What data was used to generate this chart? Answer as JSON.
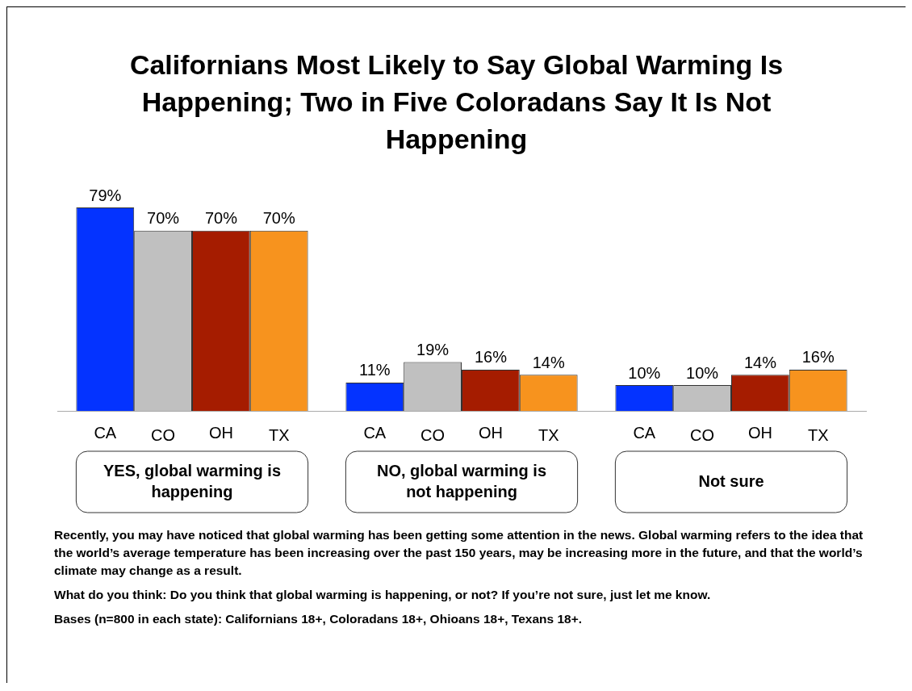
{
  "chart_data": {
    "type": "bar",
    "title": "Californians Most Likely to Say Global Warming Is Happening; Two in Five Coloradans Say It Is Not Happening",
    "categories": [
      "YES, global warming is happening",
      "NO, global warming is not happening",
      "Not sure"
    ],
    "series": [
      {
        "name": "CA",
        "color": "#0433ff",
        "values": [
          79,
          11,
          10
        ],
        "value_labels": [
          "79%",
          "11%",
          "10%"
        ]
      },
      {
        "name": "CO",
        "color": "#c0c0c0",
        "values": [
          70,
          19,
          10
        ],
        "value_labels": [
          "70%",
          "19%",
          "10%"
        ]
      },
      {
        "name": "OH",
        "color": "#a51c00",
        "values": [
          70,
          16,
          14
        ],
        "value_labels": [
          "70%",
          "16%",
          "14%"
        ]
      },
      {
        "name": "TX",
        "color": "#f7931e",
        "values": [
          70,
          14,
          16
        ],
        "value_labels": [
          "70%",
          "14%",
          "16%"
        ]
      }
    ],
    "annotations": [
      "Recently, you may have noticed that global warming has been getting some attention in the news. Global warming refers to the idea that the world’s average temperature has been increasing over the past 150 years, may be increasing more in the future, and that the world’s climate may change as a result.",
      "What do you think: Do you think that global warming is happening, or not? If you’re not sure, just let me know.",
      "Bases (n=800 in each state): Californians 18+, Coloradans 18+, Ohioans 18+, Texans 18+."
    ]
  }
}
